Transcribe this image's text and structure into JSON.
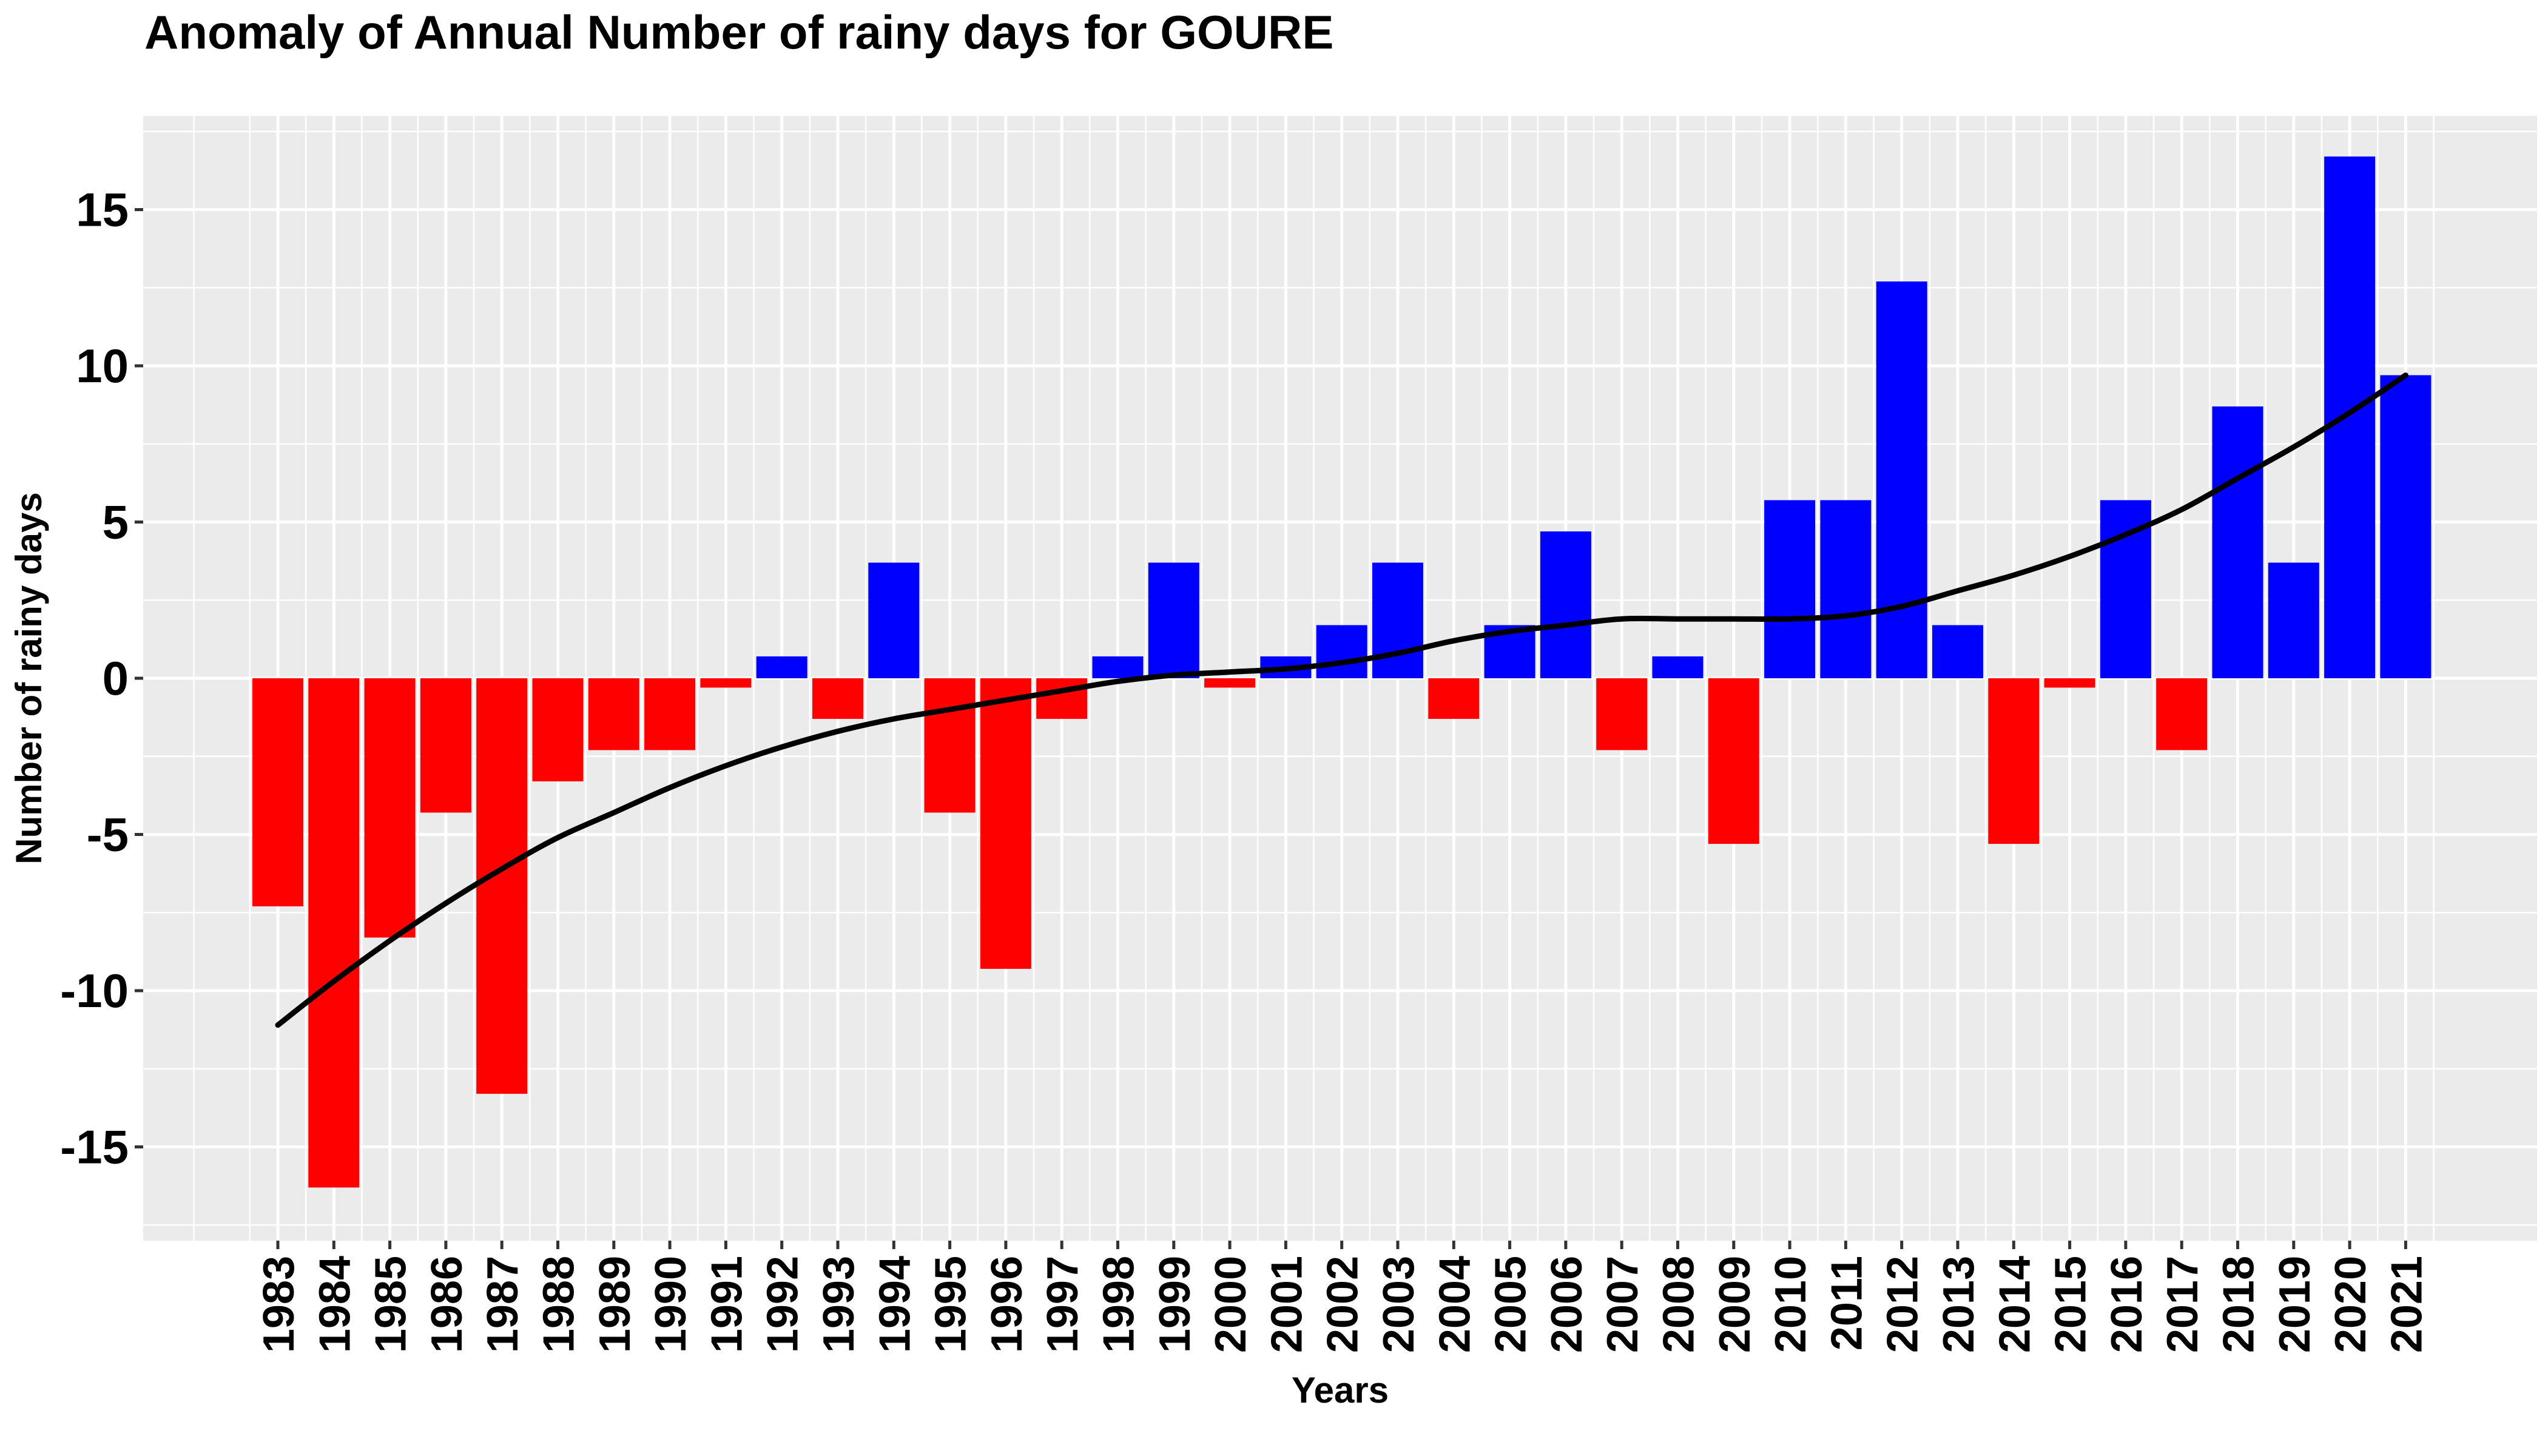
{
  "chart_data": {
    "type": "bar",
    "title": "Anomaly of Annual Number of rainy days for GOURE",
    "xlabel": "Years",
    "ylabel": "Number of rainy days",
    "ylim": [
      -18,
      18
    ],
    "yticks": [
      -15,
      -10,
      -5,
      0,
      5,
      10,
      15
    ],
    "grid": true,
    "categories": [
      "1983",
      "1984",
      "1985",
      "1986",
      "1987",
      "1988",
      "1989",
      "1990",
      "1991",
      "1992",
      "1993",
      "1994",
      "1995",
      "1996",
      "1997",
      "1998",
      "1999",
      "2000",
      "2001",
      "2002",
      "2003",
      "2004",
      "2005",
      "2006",
      "2007",
      "2008",
      "2009",
      "2010",
      "2011",
      "2012",
      "2013",
      "2014",
      "2015",
      "2016",
      "2017",
      "2018",
      "2019",
      "2020",
      "2021"
    ],
    "values": [
      -7.3,
      -16.3,
      -8.3,
      -4.3,
      -13.3,
      -3.3,
      -2.3,
      -2.3,
      -0.3,
      0.7,
      -1.3,
      3.7,
      -4.3,
      -9.3,
      -1.3,
      0.7,
      3.7,
      -0.3,
      0.7,
      1.7,
      3.7,
      -1.3,
      1.7,
      4.7,
      -2.3,
      0.7,
      -5.3,
      5.7,
      5.7,
      12.7,
      1.7,
      -5.3,
      -0.3,
      5.7,
      -2.3,
      8.7,
      3.7,
      16.7,
      9.7
    ],
    "positive_color": "#0000ff",
    "negative_color": "#ff0000",
    "trend": {
      "type": "smooth line",
      "color": "#000000",
      "values": [
        -11.1,
        -9.7,
        -8.4,
        -7.2,
        -6.1,
        -5.1,
        -4.3,
        -3.5,
        -2.8,
        -2.2,
        -1.7,
        -1.3,
        -1.0,
        -0.7,
        -0.4,
        -0.1,
        0.1,
        0.2,
        0.3,
        0.5,
        0.8,
        1.2,
        1.5,
        1.7,
        1.9,
        1.9,
        1.9,
        1.9,
        2.0,
        2.3,
        2.8,
        3.3,
        3.9,
        4.6,
        5.4,
        6.4,
        7.4,
        8.5,
        9.7
      ]
    }
  }
}
